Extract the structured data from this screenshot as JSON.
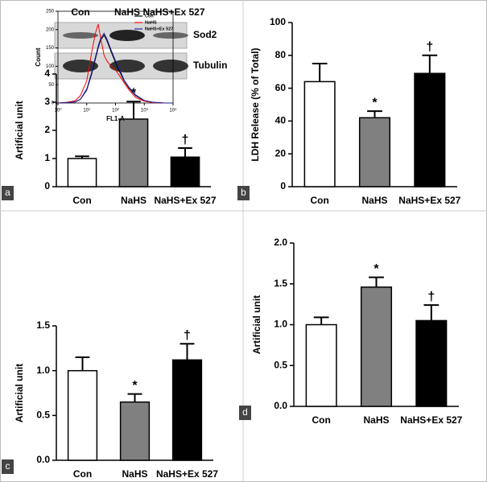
{
  "chart_data": [
    {
      "type": "bar",
      "panel_label": "a",
      "ylabel": "Artificial unit",
      "blot_lanes": [
        "Con",
        "NaHS",
        "NaHS+Ex 527"
      ],
      "blot_rows": [
        "Sod2",
        "Tubulin"
      ],
      "categories": [
        "Con",
        "NaHS",
        "NaHS+Ex 527"
      ],
      "values": [
        1.0,
        2.4,
        1.05
      ],
      "errors": [
        0.08,
        0.62,
        0.32
      ],
      "markers": [
        null,
        "*",
        "†"
      ],
      "colors": [
        "#ffffff",
        "#808080",
        "#000000"
      ],
      "ylim": [
        0,
        4
      ],
      "yticks": [
        0,
        1,
        2,
        3,
        4
      ]
    },
    {
      "type": "bar",
      "panel_label": "b",
      "ylabel": "LDH Release (% of Total)",
      "categories": [
        "Con",
        "NaHS",
        "NaHS+Ex 527"
      ],
      "values": [
        64,
        42,
        69
      ],
      "errors": [
        11,
        4,
        11
      ],
      "markers": [
        null,
        "*",
        "†"
      ],
      "colors": [
        "#ffffff",
        "#808080",
        "#000000"
      ],
      "ylim": [
        0,
        100
      ],
      "yticks": [
        0,
        20,
        40,
        60,
        80,
        100
      ]
    },
    {
      "type": "line",
      "xlabel": "FL1-A",
      "ylabel": "Count",
      "log_x": true,
      "x": [
        1,
        2,
        4,
        6,
        10,
        15,
        20,
        25,
        30,
        40,
        50,
        70,
        100,
        150,
        200,
        300,
        500,
        1000,
        2000,
        5000,
        10000
      ],
      "series": [
        {
          "name": "Con",
          "color": "#000000",
          "values": [
            0,
            1,
            3,
            10,
            35,
            80,
            120,
            150,
            170,
            185,
            170,
            140,
            110,
            80,
            60,
            40,
            20,
            6,
            2,
            0,
            0
          ]
        },
        {
          "name": "NaHS",
          "color": "#ff0000",
          "values": [
            0,
            2,
            6,
            20,
            60,
            140,
            190,
            215,
            180,
            130,
            115,
            100,
            90,
            70,
            55,
            35,
            15,
            5,
            1,
            0,
            0
          ]
        },
        {
          "name": "NaHS+Ex 527",
          "color": "#1f1fa0",
          "values": [
            0,
            1,
            3,
            10,
            38,
            85,
            125,
            155,
            175,
            190,
            175,
            145,
            115,
            85,
            62,
            42,
            22,
            7,
            2,
            0,
            0
          ]
        }
      ],
      "xlim": [
        1,
        10000
      ],
      "xticks": [
        {
          "value": 1,
          "label": "10⁰"
        },
        {
          "value": 10,
          "label": "10¹"
        },
        {
          "value": 100,
          "label": "10²"
        },
        {
          "value": 1000,
          "label": "10³"
        },
        {
          "value": 10000,
          "label": "10⁴"
        }
      ],
      "ylim": [
        0,
        250
      ],
      "yticks": [
        0,
        50,
        100,
        150,
        200,
        250
      ]
    },
    {
      "type": "bar",
      "panel_label": "c",
      "ylabel": "Artificial unit",
      "categories": [
        "Con",
        "NaHS",
        "NaHS+Ex 527"
      ],
      "values": [
        1.0,
        0.65,
        1.12
      ],
      "errors": [
        0.15,
        0.09,
        0.18
      ],
      "markers": [
        null,
        "*",
        "†"
      ],
      "colors": [
        "#ffffff",
        "#808080",
        "#000000"
      ],
      "ylim": [
        0,
        1.5
      ],
      "yticks": [
        {
          "value": 0,
          "label": "0.0"
        },
        0.5,
        {
          "value": 1,
          "label": "1.0"
        },
        1.5
      ]
    },
    {
      "type": "bar",
      "panel_label": "d",
      "ylabel": "Artificial unit",
      "categories": [
        "Con",
        "NaHS",
        "NaHS+Ex 527"
      ],
      "values": [
        1.0,
        1.46,
        1.05
      ],
      "errors": [
        0.09,
        0.12,
        0.19
      ],
      "markers": [
        null,
        "*",
        "†"
      ],
      "colors": [
        "#ffffff",
        "#808080",
        "#000000"
      ],
      "ylim": [
        0,
        2
      ],
      "yticks": [
        {
          "value": 0,
          "label": "0.0"
        },
        0.5,
        {
          "value": 1,
          "label": "1.0"
        },
        1.5,
        {
          "value": 2,
          "label": "2.0"
        }
      ]
    }
  ]
}
